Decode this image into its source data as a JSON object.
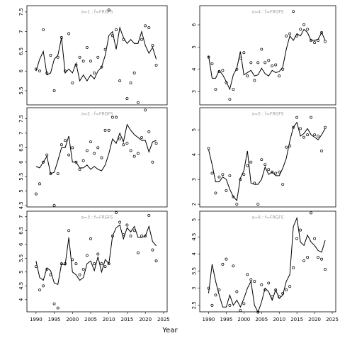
{
  "xlabel": "Year",
  "chart_data": [
    {
      "type": "line",
      "title": "a=1 : f=FRGFS",
      "x": [
        1990,
        1991,
        1992,
        1993,
        1994,
        1995,
        1996,
        1997,
        1998,
        1999,
        2000,
        2001,
        2002,
        2003,
        2004,
        2005,
        2006,
        2007,
        2008,
        2009,
        2010,
        2011,
        2012,
        2013,
        2014,
        2015,
        2016,
        2017,
        2018,
        2019,
        2020,
        2021,
        2022,
        2023
      ],
      "xlim": [
        1987.5,
        2026
      ],
      "ylim": [
        5.14,
        7.66
      ],
      "yticks": [
        5.5,
        6.0,
        6.5,
        7.0,
        7.5
      ],
      "series": [
        {
          "style": "line",
          "color": "#000000",
          "values": [
            6.0,
            6.3,
            6.5,
            5.9,
            5.95,
            6.3,
            6.4,
            6.85,
            5.95,
            6.05,
            5.95,
            6.2,
            5.75,
            5.9,
            5.75,
            5.9,
            5.8,
            6.0,
            6.1,
            6.4,
            6.9,
            7.0,
            6.55,
            7.1,
            6.85,
            6.7,
            6.8,
            6.7,
            6.7,
            7.0,
            6.65,
            6.45,
            6.6,
            6.3
          ]
        },
        {
          "style": "points",
          "color": "#000000",
          "values": [
            6.05,
            6.0,
            7.05,
            5.95,
            6.4,
            5.5,
            6.35,
            6.85,
            6.0,
            6.95,
            5.7,
            6.15,
            6.35,
            6.25,
            6.6,
            6.25,
            5.95,
            6.35,
            6.1,
            6.55,
            7.55,
            6.9,
            7.05,
            5.75,
            6.8,
            5.3,
            5.7,
            5.95,
            5.2,
            6.8,
            7.15,
            7.1,
            6.65,
            6.15
          ]
        }
      ]
    },
    {
      "type": "line",
      "title": "a=4 : f=FRGFS",
      "x": [
        1990,
        1991,
        1992,
        1993,
        1994,
        1995,
        1996,
        1997,
        1998,
        1999,
        2000,
        2001,
        2002,
        2003,
        2004,
        2005,
        2006,
        2007,
        2008,
        2009,
        2010,
        2011,
        2012,
        2013,
        2014,
        2015,
        2016,
        2017,
        2018,
        2019,
        2020,
        2021,
        2022,
        2023
      ],
      "xlim": [
        1987.5,
        2026
      ],
      "ylim": [
        2.4,
        6.86
      ],
      "yticks": [
        3,
        4,
        5,
        6
      ],
      "series": [
        {
          "style": "line",
          "color": "#000000",
          "values": [
            4.6,
            3.6,
            3.6,
            3.95,
            3.75,
            3.45,
            3.1,
            3.75,
            4.05,
            4.8,
            3.75,
            3.85,
            3.95,
            3.7,
            3.75,
            4.05,
            3.8,
            3.7,
            3.95,
            3.85,
            3.9,
            4.1,
            4.9,
            5.5,
            5.3,
            5.6,
            5.5,
            5.8,
            5.65,
            5.3,
            5.3,
            5.35,
            5.65,
            5.3
          ]
        },
        {
          "style": "points",
          "color": "#000000",
          "values": [
            4.55,
            4.25,
            3.1,
            3.9,
            3.95,
            3.4,
            2.65,
            3.1,
            4.0,
            4.5,
            4.75,
            3.7,
            4.3,
            3.5,
            4.3,
            4.9,
            4.3,
            4.4,
            4.15,
            4.2,
            3.7,
            4.0,
            5.5,
            5.6,
            6.6,
            5.5,
            5.8,
            6.0,
            5.8,
            5.3,
            5.2,
            5.3,
            5.65,
            5.25
          ]
        }
      ]
    },
    {
      "type": "line",
      "title": "a=2 : f=FRGFS",
      "x": [
        1990,
        1991,
        1992,
        1993,
        1994,
        1995,
        1996,
        1997,
        1998,
        1999,
        2000,
        2001,
        2002,
        2003,
        2004,
        2005,
        2006,
        2007,
        2008,
        2009,
        2010,
        2011,
        2012,
        2013,
        2014,
        2015,
        2016,
        2017,
        2018,
        2019,
        2020,
        2021,
        2022,
        2023
      ],
      "xlim": [
        1987.5,
        2026
      ],
      "ylim": [
        4.45,
        7.88
      ],
      "yticks": [
        4.5,
        5.0,
        5.5,
        6.0,
        6.5,
        7.0,
        7.5
      ],
      "series": [
        {
          "style": "line",
          "color": "#000000",
          "values": [
            5.85,
            5.8,
            6.0,
            6.2,
            5.6,
            5.65,
            6.05,
            6.5,
            6.5,
            6.9,
            6.0,
            6.0,
            5.8,
            5.8,
            5.9,
            5.75,
            5.85,
            5.75,
            5.7,
            5.9,
            6.3,
            6.8,
            6.65,
            7.0,
            6.7,
            7.3,
            7.1,
            6.95,
            6.85,
            6.75,
            6.75,
            6.35,
            6.7,
            6.75
          ]
        },
        {
          "style": "points",
          "color": "#000000",
          "values": [
            4.9,
            5.25,
            6.0,
            6.25,
            5.6,
            4.5,
            5.6,
            6.6,
            6.75,
            6.25,
            6.5,
            6.0,
            5.75,
            6.05,
            6.4,
            6.7,
            6.3,
            6.5,
            6.15,
            7.1,
            7.1,
            7.55,
            7.55,
            6.8,
            6.6,
            6.65,
            6.4,
            6.2,
            6.3,
            6.85,
            7.8,
            7.05,
            6.0,
            6.65
          ]
        }
      ]
    },
    {
      "type": "line",
      "title": "a=5 : f=FRGFS",
      "x": [
        1990,
        1991,
        1992,
        1993,
        1994,
        1995,
        1996,
        1997,
        1998,
        1999,
        2000,
        2001,
        2002,
        2003,
        2004,
        2005,
        2006,
        2007,
        2008,
        2009,
        2010,
        2011,
        2012,
        2013,
        2014,
        2015,
        2016,
        2017,
        2018,
        2019,
        2020,
        2021,
        2022,
        2023
      ],
      "xlim": [
        1987.5,
        2026
      ],
      "ylim": [
        1.89,
        5.89
      ],
      "yticks": [
        2,
        3,
        4,
        5
      ],
      "series": [
        {
          "style": "line",
          "color": "#000000",
          "values": [
            4.2,
            3.6,
            2.9,
            2.9,
            3.1,
            3.0,
            2.6,
            2.3,
            2.15,
            3.05,
            3.35,
            4.15,
            2.85,
            2.8,
            2.8,
            3.0,
            3.5,
            3.2,
            3.3,
            3.15,
            3.15,
            3.45,
            3.85,
            4.55,
            5.1,
            5.3,
            4.75,
            4.85,
            5.05,
            4.8,
            4.7,
            4.6,
            4.8,
            5.05
          ]
        },
        {
          "style": "points",
          "color": "#000000",
          "values": [
            4.25,
            3.25,
            2.45,
            3.1,
            3.2,
            2.55,
            3.15,
            2.3,
            2.0,
            3.0,
            3.2,
            3.55,
            3.7,
            2.85,
            2.0,
            3.8,
            3.6,
            3.4,
            3.3,
            3.25,
            3.3,
            2.8,
            4.3,
            4.35,
            5.1,
            5.5,
            5.05,
            4.7,
            4.8,
            5.5,
            4.8,
            4.75,
            4.15,
            5.1
          ]
        }
      ]
    },
    {
      "type": "line",
      "title": "a=3 : f=FRGFS",
      "x": [
        1990,
        1991,
        1992,
        1993,
        1994,
        1995,
        1996,
        1997,
        1998,
        1999,
        2000,
        2001,
        2002,
        2003,
        2004,
        2005,
        2006,
        2007,
        2008,
        2009,
        2010,
        2011,
        2012,
        2013,
        2014,
        2015,
        2016,
        2017,
        2018,
        2019,
        2020,
        2021,
        2022,
        2023
      ],
      "xlim": [
        1987.5,
        2026
      ],
      "ylim": [
        3.56,
        7.2
      ],
      "yticks": [
        4.0,
        4.5,
        5.0,
        5.5,
        6.0,
        6.5,
        7.0
      ],
      "xticks": [
        1990,
        1995,
        2000,
        2005,
        2010,
        2015,
        2020,
        2025
      ],
      "series": [
        {
          "style": "line",
          "color": "#000000",
          "values": [
            5.4,
            4.8,
            4.7,
            5.15,
            5.05,
            4.6,
            4.55,
            5.3,
            5.25,
            6.25,
            5.0,
            4.9,
            4.7,
            4.8,
            5.3,
            5.4,
            5.05,
            5.55,
            5.0,
            5.45,
            5.3,
            6.3,
            6.6,
            6.7,
            6.2,
            6.6,
            6.45,
            6.65,
            6.25,
            6.25,
            6.3,
            6.65,
            6.1,
            5.95
          ]
        },
        {
          "style": "points",
          "color": "#000000",
          "values": [
            5.2,
            4.35,
            4.5,
            5.1,
            4.9,
            3.85,
            3.7,
            5.3,
            5.3,
            6.5,
            5.45,
            5.3,
            4.9,
            5.1,
            5.6,
            6.2,
            5.3,
            5.65,
            5.3,
            5.2,
            5.3,
            6.3,
            7.15,
            6.8,
            6.35,
            6.7,
            6.3,
            6.5,
            5.7,
            6.3,
            6.3,
            7.05,
            5.8,
            5.4
          ]
        }
      ]
    },
    {
      "type": "line",
      "title": "a=6 : f=FRGFS",
      "x": [
        1990,
        1991,
        1992,
        1993,
        1994,
        1995,
        1996,
        1997,
        1998,
        1999,
        2000,
        2001,
        2002,
        2003,
        2004,
        2005,
        2006,
        2007,
        2008,
        2009,
        2010,
        2011,
        2012,
        2013,
        2014,
        2015,
        2016,
        2017,
        2018,
        2019,
        2020,
        2021,
        2022,
        2023
      ],
      "xlim": [
        1987.5,
        2026
      ],
      "ylim": [
        2.31,
        5.25
      ],
      "yticks": [
        2.5,
        3.0,
        3.5,
        4.0,
        4.5,
        5.0
      ],
      "xticks": [
        1990,
        1995,
        2000,
        2005,
        2010,
        2015,
        2020,
        2025
      ],
      "series": [
        {
          "style": "line",
          "color": "#000000",
          "values": [
            2.85,
            3.7,
            3.2,
            2.8,
            2.45,
            2.45,
            2.8,
            2.5,
            2.65,
            2.45,
            2.7,
            3.0,
            3.2,
            2.5,
            2.3,
            2.6,
            3.0,
            2.9,
            2.65,
            2.95,
            2.7,
            2.8,
            3.2,
            3.4,
            4.8,
            5.05,
            4.35,
            4.25,
            4.55,
            4.35,
            4.25,
            4.1,
            4.05,
            4.4
          ]
        },
        {
          "style": "points",
          "color": "#000000",
          "values": [
            3.0,
            2.5,
            2.8,
            2.95,
            3.7,
            3.85,
            2.5,
            3.65,
            2.9,
            2.35,
            2.55,
            3.4,
            3.25,
            3.2,
            2.3,
            3.1,
            2.95,
            3.15,
            2.75,
            2.95,
            2.75,
            2.85,
            2.95,
            3.05,
            3.6,
            4.45,
            4.7,
            3.8,
            3.9,
            5.2,
            4.45,
            3.9,
            3.85,
            3.55
          ]
        }
      ]
    }
  ]
}
